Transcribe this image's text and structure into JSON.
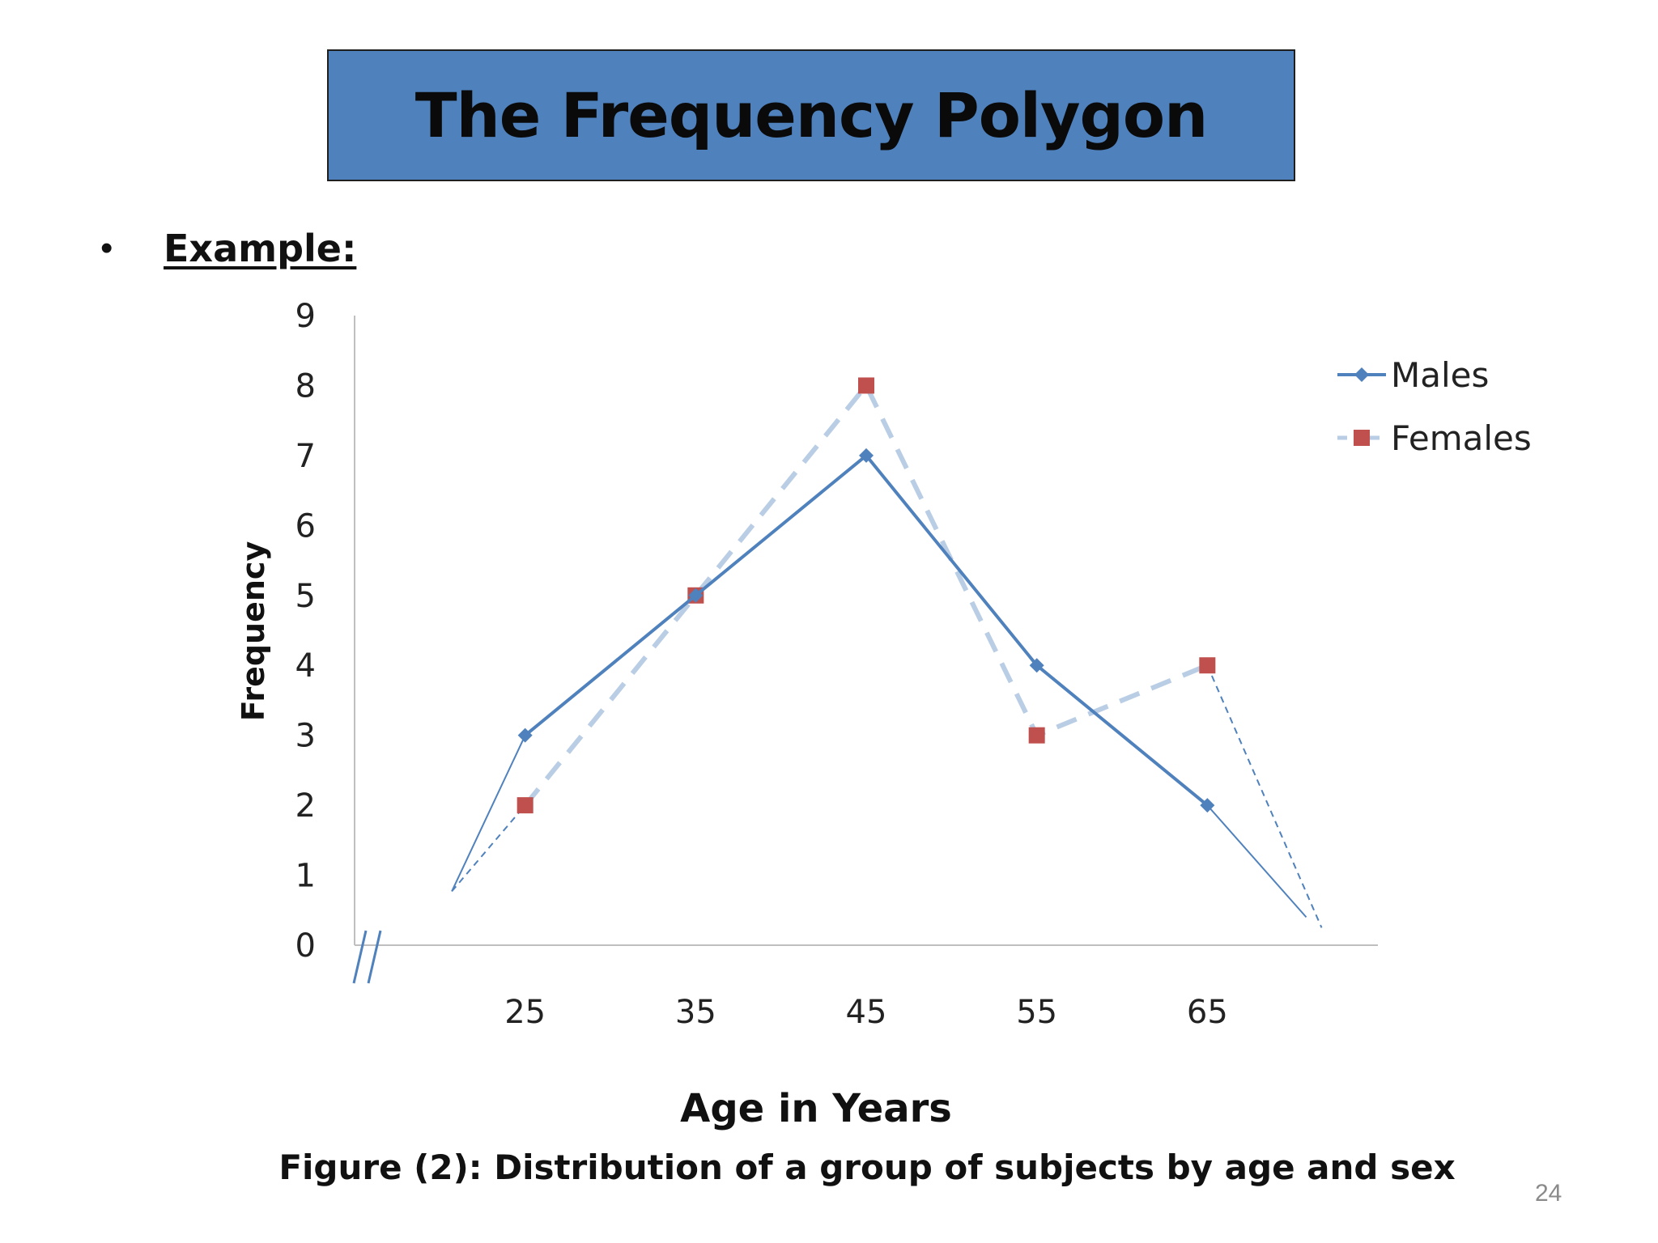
{
  "slide": {
    "title": "The Frequency Polygon",
    "bullet_label": "Example:",
    "caption": "Figure (2): Distribution of a group of subjects by age and sex",
    "page_number": "24"
  },
  "chart_data": {
    "type": "line",
    "xlabel": "Age in Years",
    "ylabel": "Frequency",
    "categories": [
      "25",
      "35",
      "45",
      "55",
      "65"
    ],
    "x": [
      25,
      35,
      45,
      55,
      65
    ],
    "xlim": [
      15,
      75
    ],
    "ylim": [
      0,
      9
    ],
    "yticks": [
      "0",
      "1",
      "2",
      "3",
      "4",
      "5",
      "6",
      "7",
      "8",
      "9"
    ],
    "grid": false,
    "legend_position": "top-right",
    "series": [
      {
        "name": "Males",
        "values": [
          3,
          5,
          7,
          4,
          2
        ],
        "color": "#4f81bd",
        "marker": "diamond",
        "line_style": "solid",
        "end_points": [
          [
            20.7,
            0.77
          ],
          [
            70.8,
            0.4
          ]
        ]
      },
      {
        "name": "Females",
        "values": [
          2,
          5,
          8,
          3,
          4
        ],
        "color": "#c0504d",
        "line_color": "#b9cde5",
        "marker": "square",
        "line_style": "dashed",
        "end_points": [
          [
            20.7,
            0.77
          ],
          [
            71.7,
            0.25
          ]
        ]
      }
    ],
    "axis_break": true
  }
}
